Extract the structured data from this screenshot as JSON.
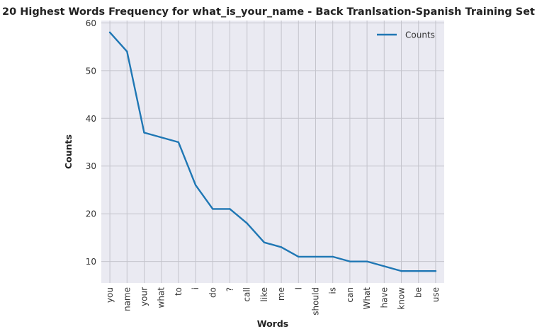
{
  "chart_data": {
    "type": "line",
    "title": "20 Highest Words Frequency for what_is_your_name - Back Tranlsation-Spanish Training Set",
    "xlabel": "Words",
    "ylabel": "Counts",
    "categories": [
      "you",
      "name",
      "your",
      "what",
      "to",
      "i",
      "do",
      "?",
      "call",
      "like",
      "me",
      "I",
      "should",
      "is",
      "can",
      "What",
      "have",
      "know",
      "be",
      "use"
    ],
    "series": [
      {
        "name": "Counts",
        "color": "#1f77b4",
        "values": [
          58,
          54,
          37,
          36,
          35,
          26,
          21,
          21,
          18,
          14,
          13,
          11,
          11,
          11,
          10,
          10,
          9,
          8,
          8,
          8
        ]
      }
    ],
    "ylim": [
      5.5,
      60.5
    ],
    "yticks": [
      10,
      20,
      30,
      40,
      50,
      60
    ],
    "grid": true,
    "legend_position": "top-right",
    "background_color": "#eaeaf2",
    "grid_color": "#c4c4cc"
  }
}
